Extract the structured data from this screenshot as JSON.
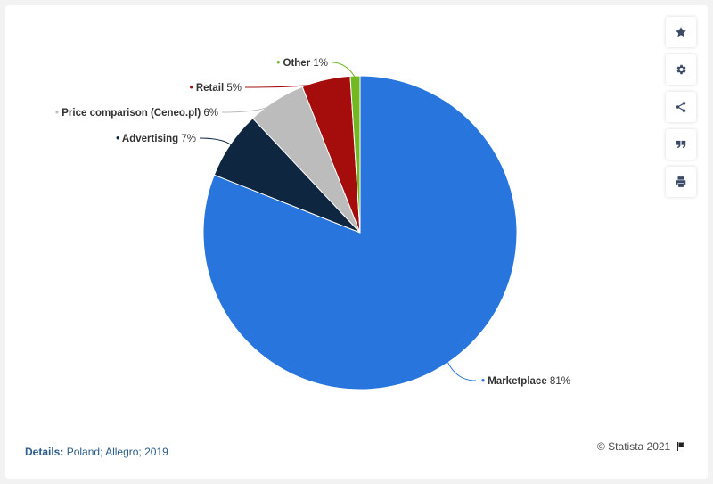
{
  "chart_data": {
    "type": "pie",
    "slices": [
      {
        "name": "Marketplace",
        "value": 81,
        "label": "81%",
        "color": "#2876dd"
      },
      {
        "name": "Advertising",
        "value": 7,
        "label": "7%",
        "color": "#0f2641"
      },
      {
        "name": "Price comparison (Ceneo.pl)",
        "value": 6,
        "label": "6%",
        "color": "#bcbcbc"
      },
      {
        "name": "Retail",
        "value": 5,
        "label": "5%",
        "color": "#a50d0d"
      },
      {
        "name": "Other",
        "value": 1,
        "label": "1%",
        "color": "#72b821"
      }
    ],
    "start_angle": "12 o'clock",
    "direction": "clockwise",
    "labels": "outside with leader lines"
  },
  "footer": {
    "details_label": "Details:",
    "details_value": "Poland; Allegro; 2019",
    "credit": "© Statista 2021"
  },
  "toolbar": {
    "icons": [
      "star-icon",
      "gear-icon",
      "share-icon",
      "quote-icon",
      "print-icon"
    ]
  }
}
